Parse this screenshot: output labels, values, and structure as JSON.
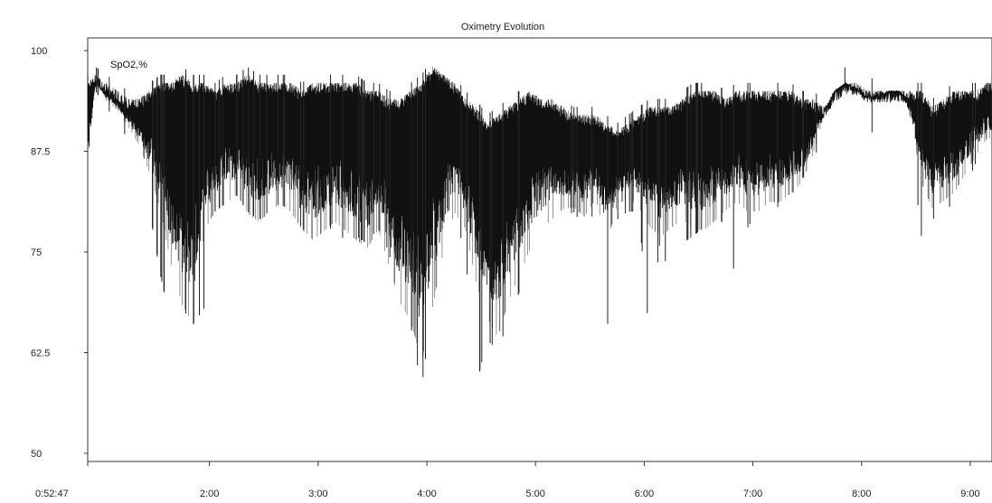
{
  "chart_data": {
    "type": "line",
    "title": "Oximetry Evolution",
    "series_label": "SpO2,%",
    "ylim": [
      50,
      100
    ],
    "y_ticks": [
      "100",
      "87.5",
      "75",
      "62.5",
      "50"
    ],
    "y_tick_values": [
      100,
      87.5,
      75,
      62.5,
      50
    ],
    "x_ticks": [
      "0:52:47",
      "2:00",
      "3:00",
      "4:00",
      "5:00",
      "6:00",
      "7:00",
      "8:00",
      "9:00"
    ],
    "x_tick_hours": [
      0.8797,
      2.0,
      3.0,
      4.0,
      5.0,
      6.0,
      7.0,
      8.0,
      9.0
    ],
    "x_range_hours": [
      0.8797,
      9.2
    ],
    "line_color": "#111111",
    "grid": false,
    "series": [
      {
        "name": "SpO2,%",
        "hours": [
          0.88,
          0.95,
          1.05,
          1.15,
          1.25,
          1.35,
          1.45,
          1.55,
          1.65,
          1.75,
          1.85,
          1.95,
          2.05,
          2.15,
          2.25,
          2.35,
          2.45,
          2.55,
          2.65,
          2.75,
          2.85,
          2.95,
          3.05,
          3.15,
          3.25,
          3.35,
          3.45,
          3.55,
          3.65,
          3.75,
          3.85,
          3.95,
          4.05,
          4.15,
          4.25,
          4.35,
          4.45,
          4.55,
          4.65,
          4.75,
          4.85,
          4.95,
          5.05,
          5.15,
          5.25,
          5.35,
          5.45,
          5.55,
          5.65,
          5.75,
          5.85,
          5.95,
          6.05,
          6.15,
          6.25,
          6.35,
          6.45,
          6.55,
          6.65,
          6.75,
          6.85,
          6.95,
          7.05,
          7.15,
          7.25,
          7.35,
          7.45,
          7.55,
          7.65,
          7.75,
          7.85,
          7.95,
          8.05,
          8.15,
          8.25,
          8.35,
          8.45,
          8.55,
          8.65,
          8.75,
          8.85,
          8.95,
          9.05,
          9.15
        ],
        "upper": [
          97,
          97,
          96,
          95,
          94,
          94,
          95,
          96,
          96,
          97,
          96,
          96,
          95,
          96,
          96,
          97,
          96,
          96,
          96,
          96,
          95,
          96,
          96,
          96,
          96,
          96,
          95,
          95,
          94,
          94,
          95,
          96,
          98,
          97,
          96,
          94,
          93,
          91,
          92,
          93,
          94,
          95,
          94,
          94,
          93,
          92,
          92,
          92,
          91,
          90,
          91,
          92,
          93,
          93,
          93,
          94,
          95,
          95,
          95,
          94,
          95,
          95,
          95,
          95,
          95,
          95,
          94,
          94,
          93,
          95,
          96,
          96,
          95,
          95,
          95,
          95,
          95,
          95,
          93,
          94,
          95,
          95,
          95,
          96
        ],
        "lower": [
          86,
          96,
          94,
          93,
          91,
          89,
          86,
          82,
          76,
          72,
          70,
          80,
          82,
          83,
          84,
          82,
          81,
          82,
          83,
          82,
          80,
          79,
          80,
          81,
          80,
          79,
          78,
          80,
          76,
          72,
          70,
          66,
          72,
          78,
          82,
          80,
          74,
          70,
          68,
          72,
          75,
          78,
          80,
          81,
          82,
          82,
          81,
          83,
          78,
          82,
          83,
          82,
          80,
          79,
          80,
          81,
          80,
          80,
          81,
          82,
          83,
          82,
          82,
          83,
          83,
          84,
          85,
          88,
          92,
          95,
          96,
          95,
          94,
          94,
          95,
          95,
          92,
          85,
          82,
          83,
          84,
          86,
          88,
          90
        ],
        "minimum": [
          85,
          95,
          93,
          91,
          89,
          85,
          80,
          72,
          66,
          68,
          66,
          68,
          80,
          81,
          82,
          80,
          79,
          80,
          81,
          80,
          78,
          77,
          76,
          79,
          76,
          77,
          76,
          78,
          75,
          69,
          66,
          58,
          68,
          76,
          78,
          76,
          58,
          64,
          63,
          66,
          70,
          73,
          76,
          80,
          79,
          80,
          78,
          80,
          64,
          79,
          80,
          80,
          64,
          77,
          70,
          76,
          77,
          78,
          80,
          78,
          71,
          78,
          80,
          79,
          81,
          82,
          84,
          86,
          90,
          94,
          95,
          94,
          88,
          92,
          94,
          94,
          89,
          77,
          79,
          80,
          81,
          83,
          86,
          88
        ],
        "maximum": [
          98,
          98,
          97,
          96,
          95,
          95,
          96,
          97,
          97,
          98,
          97,
          97,
          96,
          97,
          97,
          98,
          97,
          97,
          97,
          97,
          96,
          97,
          97,
          97,
          97,
          97,
          96,
          96,
          95,
          95,
          96,
          97,
          99,
          98,
          97,
          95,
          94,
          92,
          93,
          94,
          95,
          96,
          95,
          95,
          94,
          93,
          93,
          93,
          92,
          91,
          92,
          93,
          94,
          94,
          94,
          95,
          96,
          96,
          96,
          95,
          96,
          96,
          96,
          96,
          96,
          96,
          95,
          95,
          94,
          96,
          98,
          98,
          97,
          96,
          96,
          96,
          96,
          96,
          94,
          95,
          96,
          96,
          96,
          97
        ]
      }
    ]
  }
}
